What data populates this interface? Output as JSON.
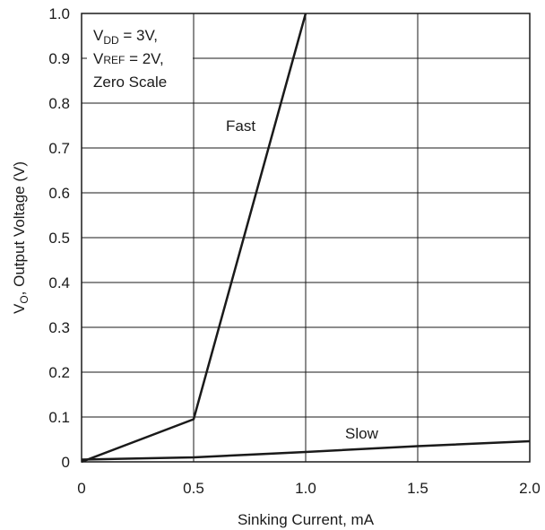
{
  "chart_data": {
    "type": "line",
    "xlabel": "Sinking Current, mA",
    "ylabel": {
      "main": "V",
      "sub": "O",
      "rest": ", Output Voltage (V)"
    },
    "xlim": [
      0,
      2.0
    ],
    "ylim": [
      0,
      1.0
    ],
    "x_ticks": [
      "0",
      "0.5",
      "1.0",
      "1.5",
      "2.0"
    ],
    "y_ticks": [
      "0",
      "0.1",
      "0.2",
      "0.3",
      "0.4",
      "0.5",
      "0.6",
      "0.7",
      "0.8",
      "0.9",
      "1.0"
    ],
    "grid": true,
    "conditions": [
      {
        "main": "V",
        "sub": "DD",
        "rest": " = 3V,"
      },
      {
        "main": "V",
        "sub": "REF",
        "rest": " = 2V,"
      },
      {
        "main": "Zero Scale",
        "sub": "",
        "rest": ""
      }
    ],
    "series": [
      {
        "name": "Fast",
        "x": [
          0,
          0.5,
          1.0
        ],
        "y": [
          0.0,
          0.095,
          1.0
        ]
      },
      {
        "name": "Slow",
        "x": [
          0,
          0.5,
          1.0,
          1.5,
          2.0
        ],
        "y": [
          0.005,
          0.01,
          0.022,
          0.035,
          0.046
        ]
      }
    ],
    "line_color": "#1a1a1a",
    "grid_color": "#1a1a1a"
  }
}
